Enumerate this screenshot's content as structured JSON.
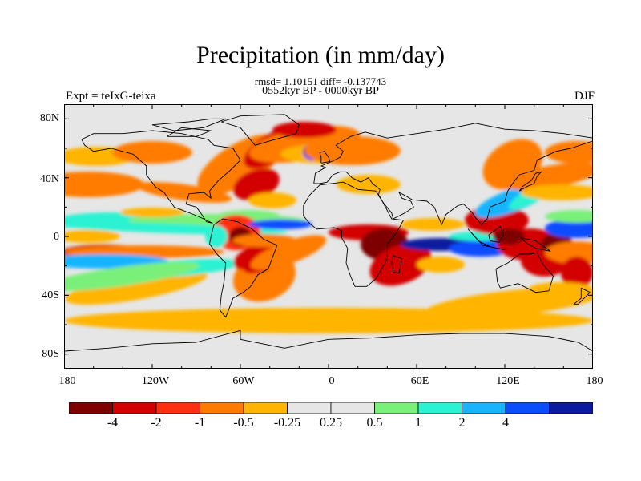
{
  "title": "Precipitation (in mm/day)",
  "stats_line": "rmsd= 1.10151 diff= -0.137743",
  "period": "0552kyr BP - 0000kyr BP",
  "experiment": "Expt = teIxG-teixa",
  "season": "DJF",
  "y_ticks": [
    "80N",
    "40N",
    "0",
    "40S",
    "80S"
  ],
  "x_ticks": [
    "180",
    "120W",
    "60W",
    "0",
    "60E",
    "120E",
    "180"
  ],
  "colorbar": {
    "colors": [
      "#7f0000",
      "#d30000",
      "#ff3010",
      "#ff7b00",
      "#ffb400",
      "#e6e6e6",
      "#e6e6e6",
      "#7af07a",
      "#2af2d2",
      "#19b4ff",
      "#0a4cff",
      "#0c1a9e"
    ],
    "labels": [
      "-4",
      "-2",
      "-1",
      "-0.5",
      "-0.25",
      "0.25",
      "0.5",
      "1",
      "2",
      "4"
    ]
  },
  "legend_colors": {
    "neutral": "#e6e6e6",
    "coast": "#000000"
  }
}
